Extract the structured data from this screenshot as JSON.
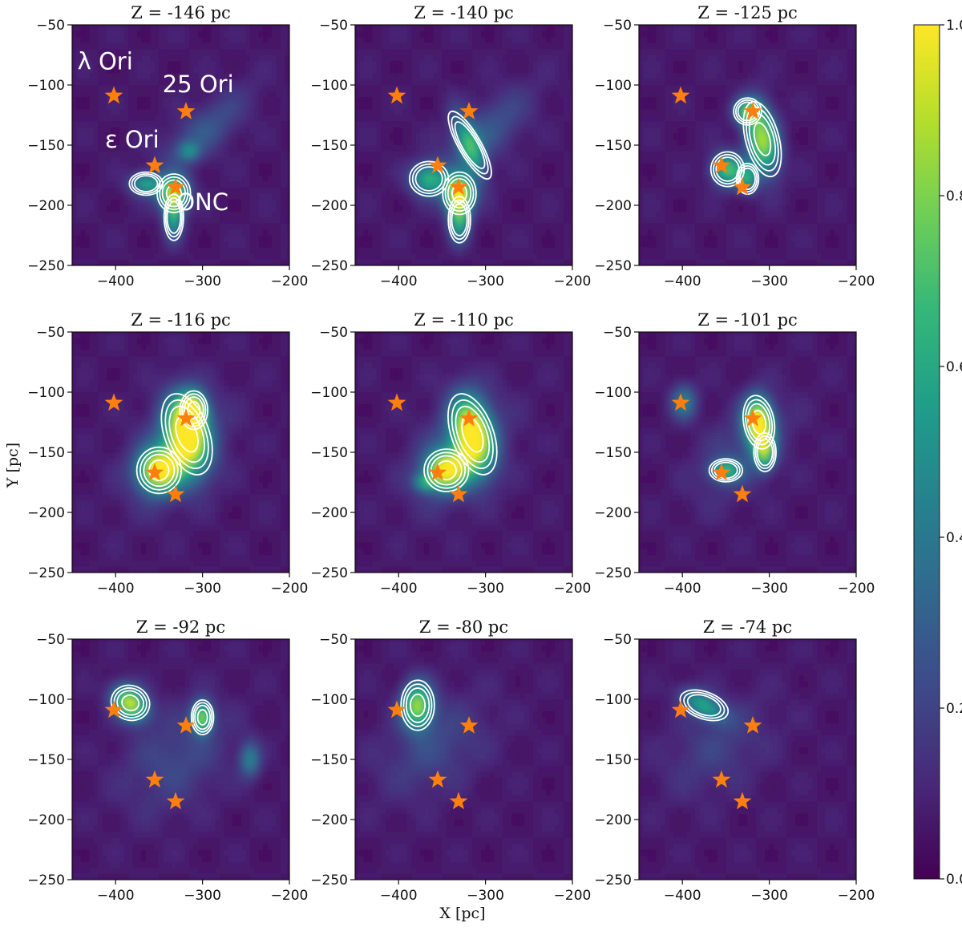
{
  "chart_data": {
    "type": "heatmap",
    "description_units": "X [pc] vs Y [pc], normalized density 0-1",
    "xlabel": "X [pc]",
    "ylabel": "Y [pc]",
    "xlim": [
      -450,
      -200
    ],
    "ylim": [
      -250,
      -50
    ],
    "xticks": [
      -400,
      -300,
      -200
    ],
    "xtick_labels": [
      "−400",
      "−300",
      "−200"
    ],
    "yticks": [
      -50,
      -100,
      -150,
      -200,
      -250
    ],
    "ytick_labels": [
      "−50",
      "−100",
      "−150",
      "−200",
      "−250"
    ],
    "colorbar": {
      "min": 0.0,
      "max": 1.0,
      "ticks": [
        0.0,
        0.2,
        0.4,
        0.6,
        0.8,
        1.0
      ],
      "tick_labels": [
        "0.0",
        "0.2",
        "0.4",
        "0.6",
        "0.8",
        "1.0"
      ],
      "colormap": [
        "#440154",
        "#482878",
        "#3e4989",
        "#31688e",
        "#26828e",
        "#1f9e89",
        "#35b779",
        "#6ece58",
        "#b5de2b",
        "#fde725"
      ]
    },
    "star_color": "#ff7f0e",
    "contour_color": "#ffffff",
    "stars": [
      {
        "name": "λ Ori",
        "x": -402,
        "y": -109
      },
      {
        "name": "25 Ori",
        "x": -319,
        "y": -122
      },
      {
        "name": "ε Ori",
        "x": -355,
        "y": -167
      },
      {
        "name": "ONC",
        "x": -331,
        "y": -185
      }
    ],
    "annotations": [
      {
        "text": "λ Ori",
        "x": -412,
        "y": -87
      },
      {
        "text": "25 Ori",
        "x": -305,
        "y": -106
      },
      {
        "text": "ε Ori",
        "x": -381,
        "y": -152
      },
      {
        "text": "ONC",
        "x": -300,
        "y": -204
      }
    ],
    "panels": [
      {
        "title": "Z = -146 pc",
        "blobs": [
          {
            "x": -333,
            "y": -190,
            "sx": 12,
            "sy": 10,
            "a": 0.75,
            "rot": 0
          },
          {
            "x": -365,
            "y": -182,
            "sx": 12,
            "sy": 6,
            "a": 0.48,
            "rot": 0
          },
          {
            "x": -333,
            "y": -210,
            "sx": 7,
            "sy": 12,
            "a": 0.5,
            "rot": 0
          },
          {
            "x": -315,
            "y": -155,
            "sx": 8,
            "sy": 5,
            "a": 0.3,
            "rot": 0
          },
          {
            "x": -300,
            "y": -140,
            "sx": 40,
            "sy": 14,
            "a": 0.2,
            "rot": 30
          }
        ]
      },
      {
        "title": "Z = -140 pc",
        "blobs": [
          {
            "x": -330,
            "y": -190,
            "sx": 12,
            "sy": 11,
            "a": 0.88,
            "rot": 0
          },
          {
            "x": -365,
            "y": -178,
            "sx": 14,
            "sy": 9,
            "a": 0.55,
            "rot": 0
          },
          {
            "x": -318,
            "y": -150,
            "sx": 8,
            "sy": 20,
            "a": 0.5,
            "rot": 30
          },
          {
            "x": -330,
            "y": -212,
            "sx": 8,
            "sy": 12,
            "a": 0.55,
            "rot": 0
          },
          {
            "x": -300,
            "y": -140,
            "sx": 40,
            "sy": 16,
            "a": 0.2,
            "rot": 30
          }
        ]
      },
      {
        "title": "Z = -125 pc",
        "blobs": [
          {
            "x": -308,
            "y": -145,
            "sx": 12,
            "sy": 20,
            "a": 0.8,
            "rot": 15
          },
          {
            "x": -348,
            "y": -170,
            "sx": 12,
            "sy": 9,
            "a": 0.65,
            "rot": 0
          },
          {
            "x": -325,
            "y": -122,
            "sx": 10,
            "sy": 7,
            "a": 0.55,
            "rot": 0
          },
          {
            "x": -325,
            "y": -178,
            "sx": 8,
            "sy": 8,
            "a": 0.45,
            "rot": 0
          }
        ]
      },
      {
        "title": "Z = -116 pc",
        "blobs": [
          {
            "x": -318,
            "y": -135,
            "sx": 16,
            "sy": 22,
            "a": 0.98,
            "rot": 20
          },
          {
            "x": -350,
            "y": -165,
            "sx": 16,
            "sy": 12,
            "a": 0.9,
            "rot": 0
          },
          {
            "x": -310,
            "y": -115,
            "sx": 10,
            "sy": 10,
            "a": 0.7,
            "rot": 0
          },
          {
            "x": -330,
            "y": -150,
            "sx": 40,
            "sy": 25,
            "a": 0.2,
            "rot": 30
          }
        ]
      },
      {
        "title": "Z = -110 pc",
        "blobs": [
          {
            "x": -315,
            "y": -135,
            "sx": 15,
            "sy": 22,
            "a": 0.98,
            "rot": 20
          },
          {
            "x": -345,
            "y": -165,
            "sx": 16,
            "sy": 11,
            "a": 0.85,
            "rot": 0
          },
          {
            "x": -370,
            "y": -175,
            "sx": 9,
            "sy": 5,
            "a": 0.35,
            "rot": 0
          },
          {
            "x": -330,
            "y": -150,
            "sx": 40,
            "sy": 25,
            "a": 0.2,
            "rot": 30
          }
        ]
      },
      {
        "title": "Z = -101 pc",
        "blobs": [
          {
            "x": -312,
            "y": -125,
            "sx": 11,
            "sy": 14,
            "a": 0.98,
            "rot": 10
          },
          {
            "x": -305,
            "y": -150,
            "sx": 8,
            "sy": 10,
            "a": 0.55,
            "rot": 0
          },
          {
            "x": -350,
            "y": -165,
            "sx": 12,
            "sy": 6,
            "a": 0.5,
            "rot": 0
          },
          {
            "x": -398,
            "y": -108,
            "sx": 10,
            "sy": 10,
            "a": 0.35,
            "rot": 0
          },
          {
            "x": -330,
            "y": -150,
            "sx": 40,
            "sy": 22,
            "a": 0.15,
            "rot": 30
          }
        ]
      },
      {
        "title": "Z = -92 pc",
        "blobs": [
          {
            "x": -383,
            "y": -103,
            "sx": 14,
            "sy": 9,
            "a": 0.85,
            "rot": -20
          },
          {
            "x": -300,
            "y": -115,
            "sx": 8,
            "sy": 9,
            "a": 0.7,
            "rot": 0
          },
          {
            "x": -245,
            "y": -150,
            "sx": 8,
            "sy": 10,
            "a": 0.35,
            "rot": 0
          },
          {
            "x": -330,
            "y": -150,
            "sx": 45,
            "sy": 28,
            "a": 0.15,
            "rot": 20
          }
        ]
      },
      {
        "title": "Z = -80 pc",
        "blobs": [
          {
            "x": -378,
            "y": -105,
            "sx": 12,
            "sy": 13,
            "a": 0.75,
            "rot": 0
          },
          {
            "x": -360,
            "y": -140,
            "sx": 45,
            "sy": 25,
            "a": 0.15,
            "rot": 20
          }
        ]
      },
      {
        "title": "Z = -74 pc",
        "blobs": [
          {
            "x": -375,
            "y": -105,
            "sx": 18,
            "sy": 7,
            "a": 0.5,
            "rot": -20
          },
          {
            "x": -360,
            "y": -140,
            "sx": 45,
            "sy": 25,
            "a": 0.12,
            "rot": 20
          }
        ]
      }
    ]
  }
}
